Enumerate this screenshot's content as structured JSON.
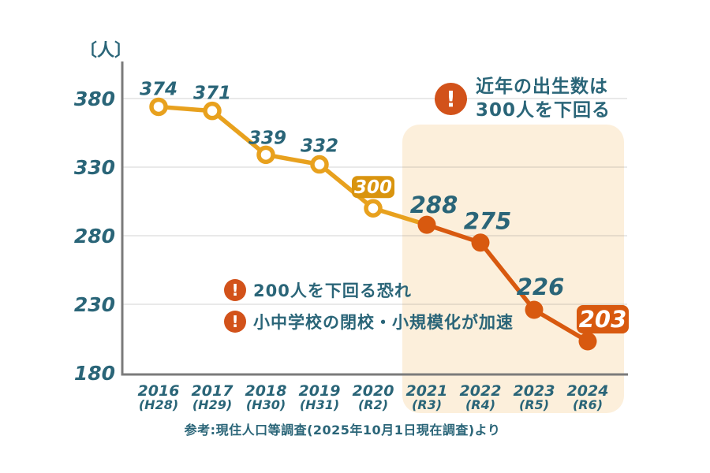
{
  "colors": {
    "teal": "#2A6578",
    "line_gold": "#E8A11E",
    "line_red": "#D8590F",
    "badge_gold_bg": "#D9940E",
    "badge_red_bg": "#D8590F",
    "badge_text": "#FFFFFF",
    "exclamation_icon_bg": "#D2521A",
    "highlight_bg": "#FCEFDB",
    "axis_gray": "#7B7B7B",
    "gridline": "rgba(120,120,120,0.16)",
    "background": "#FFFFFF"
  },
  "icons": {
    "exclamation": "!"
  },
  "chart_data": {
    "type": "line",
    "title": "",
    "unit_label": "〔人〕",
    "categories": [
      "2016",
      "2017",
      "2018",
      "2019",
      "2020",
      "2021",
      "2022",
      "2023",
      "2024"
    ],
    "era_labels": [
      "(H28)",
      "(H29)",
      "(H30)",
      "(H31)",
      "(R2)",
      "(R3)",
      "(R4)",
      "(R5)",
      "(R6)"
    ],
    "values": [
      374,
      371,
      339,
      332,
      300,
      288,
      275,
      226,
      203
    ],
    "yticks": [
      380,
      330,
      280,
      230,
      180
    ],
    "ylim": [
      180,
      380
    ],
    "grid": true,
    "legend": "none",
    "highlight_region_categories": [
      "2021",
      "2022",
      "2023",
      "2024"
    ],
    "marker_styles": [
      "open",
      "open",
      "open",
      "open",
      "open",
      "filled",
      "filled",
      "filled",
      "filled"
    ],
    "label_styles": [
      "plain",
      "plain",
      "plain",
      "plain",
      "badge-gold",
      "large",
      "large",
      "large",
      "badge-red"
    ]
  },
  "annotations": {
    "top": {
      "line1": "近年の出生数は",
      "line2": "300人を下回る"
    },
    "warn1": {
      "text": "200人を下回る恐れ"
    },
    "warn2": {
      "text": "小中学校の閉校・小規模化が加速"
    }
  },
  "footer": {
    "source": "参考:現住人口等調査(2025年10月1日現在調査)より"
  }
}
